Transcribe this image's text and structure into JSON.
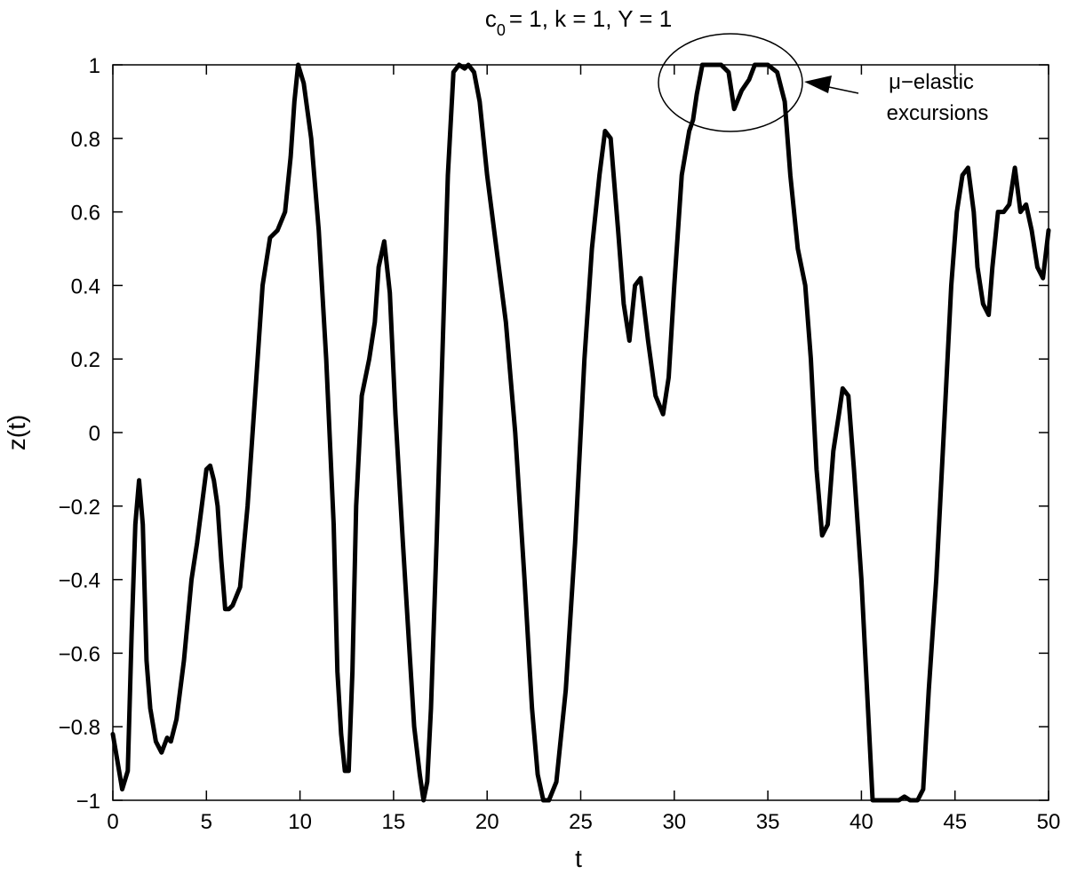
{
  "chart_data": {
    "type": "line",
    "title": "= 1, k = 1, Y = 1",
    "title_symbol": "c",
    "title_subscript": "0",
    "xlabel": "t",
    "ylabel": "z(t)",
    "xlim": [
      0,
      50
    ],
    "ylim": [
      -1,
      1
    ],
    "xticks": [
      0,
      5,
      10,
      15,
      20,
      25,
      30,
      35,
      40,
      45,
      50
    ],
    "yticks": [
      -1,
      -0.8,
      -0.6,
      -0.4,
      -0.2,
      0,
      0.2,
      0.4,
      0.6,
      0.8,
      1
    ],
    "xtick_labels": [
      "0",
      "5",
      "10",
      "15",
      "20",
      "25",
      "30",
      "35",
      "40",
      "45",
      "50"
    ],
    "ytick_labels": [
      "−1",
      "−0.8",
      "−0.6",
      "−0.4",
      "−0.2",
      "0",
      "0.2",
      "0.4",
      "0.6",
      "0.8",
      "1"
    ],
    "grid": false,
    "line_color": "#000000",
    "annotation": {
      "line1": "μ−elastic",
      "line2": "excursions",
      "target_t": 33.8,
      "target_z": 0.95
    },
    "series": [
      {
        "x": [
          0,
          0.2,
          0.5,
          0.8,
          1.0,
          1.2,
          1.4,
          1.6,
          1.8,
          2.0,
          2.3,
          2.6,
          2.9,
          3.1,
          3.4,
          3.8,
          4.2,
          4.5,
          4.8,
          5.0,
          5.2,
          5.4,
          5.6,
          5.8,
          6.0,
          6.2,
          6.4,
          6.8,
          7.2,
          7.6,
          8.0,
          8.4,
          8.8,
          9.2,
          9.5,
          9.7,
          9.9,
          10.2,
          10.6,
          11.0,
          11.4,
          11.8,
          12.0,
          12.2,
          12.4,
          12.6,
          12.8,
          13.0,
          13.3,
          13.7,
          14.0,
          14.2,
          14.5,
          14.8,
          15.1,
          15.5,
          15.8,
          16.1,
          16.4,
          16.6,
          16.8,
          17.0,
          17.3,
          17.6,
          17.9,
          18.2,
          18.5,
          18.8,
          19.0,
          19.3,
          19.6,
          20.0,
          20.5,
          21.0,
          21.5,
          22.0,
          22.4,
          22.7,
          23.0,
          23.3,
          23.7,
          24.2,
          24.7,
          25.2,
          25.6,
          26.0,
          26.3,
          26.6,
          27.0,
          27.3,
          27.6,
          27.9,
          28.2,
          28.6,
          29.0,
          29.4,
          29.7,
          30.0,
          30.4,
          30.8,
          31.0,
          31.2,
          31.5,
          32.0,
          32.5,
          32.9,
          33.2,
          33.6,
          34.0,
          34.3,
          34.7,
          35.0,
          35.5,
          35.9,
          36.2,
          36.6,
          37.0,
          37.3,
          37.6,
          37.9,
          38.2,
          38.5,
          38.8,
          39.0,
          39.3,
          39.6,
          40.0,
          40.3,
          40.6,
          41.0,
          41.5,
          42.0,
          42.3,
          42.6,
          43.0,
          43.3,
          43.6,
          44.0,
          44.4,
          44.8,
          45.1,
          45.4,
          45.7,
          46.0,
          46.2,
          46.5,
          46.8,
          47.0,
          47.3,
          47.6,
          47.9,
          48.2,
          48.5,
          48.8,
          49.1,
          49.4,
          49.7,
          50.0
        ],
        "values": [
          -0.82,
          -0.88,
          -0.97,
          -0.92,
          -0.55,
          -0.25,
          -0.13,
          -0.25,
          -0.62,
          -0.75,
          -0.84,
          -0.87,
          -0.83,
          -0.84,
          -0.78,
          -0.62,
          -0.4,
          -0.3,
          -0.18,
          -0.1,
          -0.09,
          -0.13,
          -0.2,
          -0.35,
          -0.48,
          -0.48,
          -0.47,
          -0.42,
          -0.2,
          0.1,
          0.4,
          0.53,
          0.55,
          0.6,
          0.75,
          0.9,
          1.0,
          0.95,
          0.8,
          0.55,
          0.2,
          -0.25,
          -0.65,
          -0.82,
          -0.92,
          -0.92,
          -0.65,
          -0.2,
          0.1,
          0.2,
          0.3,
          0.45,
          0.52,
          0.38,
          0.05,
          -0.3,
          -0.55,
          -0.8,
          -0.93,
          -1.0,
          -0.95,
          -0.75,
          -0.3,
          0.2,
          0.7,
          0.98,
          1.0,
          0.99,
          1.0,
          0.98,
          0.9,
          0.7,
          0.5,
          0.3,
          0.0,
          -0.4,
          -0.75,
          -0.93,
          -1.0,
          -1.0,
          -0.95,
          -0.7,
          -0.3,
          0.2,
          0.5,
          0.7,
          0.82,
          0.8,
          0.55,
          0.35,
          0.25,
          0.4,
          0.42,
          0.25,
          0.1,
          0.05,
          0.15,
          0.4,
          0.7,
          0.82,
          0.85,
          0.92,
          1.0,
          1.0,
          1.0,
          0.98,
          0.88,
          0.93,
          0.96,
          1.0,
          1.0,
          1.0,
          0.98,
          0.9,
          0.7,
          0.5,
          0.4,
          0.2,
          -0.1,
          -0.28,
          -0.25,
          -0.05,
          0.05,
          0.12,
          0.1,
          -0.1,
          -0.4,
          -0.7,
          -1.0,
          -1.0,
          -1.0,
          -1.0,
          -0.99,
          -1.0,
          -1.0,
          -0.97,
          -0.7,
          -0.4,
          0.0,
          0.4,
          0.6,
          0.7,
          0.72,
          0.6,
          0.45,
          0.35,
          0.32,
          0.45,
          0.6,
          0.6,
          0.62,
          0.72,
          0.6,
          0.62,
          0.55,
          0.45,
          0.42,
          0.55
        ]
      }
    ]
  }
}
